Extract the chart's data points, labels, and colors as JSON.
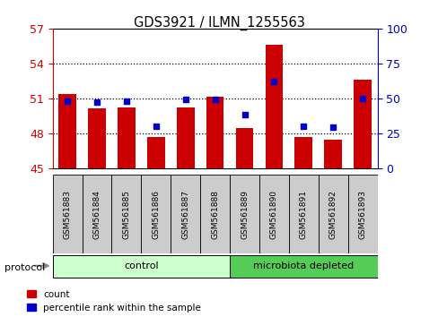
{
  "title": "GDS3921 / ILMN_1255563",
  "samples": [
    "GSM561883",
    "GSM561884",
    "GSM561885",
    "GSM561886",
    "GSM561887",
    "GSM561888",
    "GSM561889",
    "GSM561890",
    "GSM561891",
    "GSM561892",
    "GSM561893"
  ],
  "counts": [
    51.4,
    50.1,
    50.2,
    47.7,
    50.2,
    51.1,
    48.4,
    55.6,
    47.7,
    47.4,
    52.6
  ],
  "percentile_ranks": [
    48,
    47,
    48,
    30,
    49,
    49,
    38,
    62,
    30,
    29,
    50
  ],
  "ylim_left": [
    45,
    57
  ],
  "ylim_right": [
    0,
    100
  ],
  "yticks_left": [
    45,
    48,
    51,
    54,
    57
  ],
  "yticks_right": [
    0,
    25,
    50,
    75,
    100
  ],
  "bar_color": "#cc0000",
  "dot_color": "#0000cc",
  "bg_color": "#ffffff",
  "protocol_groups": [
    {
      "label": "control",
      "start": 0,
      "end": 5,
      "color": "#ccffcc"
    },
    {
      "label": "microbiota depleted",
      "start": 6,
      "end": 10,
      "color": "#55cc55"
    }
  ],
  "protocol_label": "protocol",
  "legend_count_label": "count",
  "legend_pct_label": "percentile rank within the sample",
  "left_axis_color": "#cc0000",
  "right_axis_color": "#0000cc",
  "gray_box_color": "#cccccc"
}
